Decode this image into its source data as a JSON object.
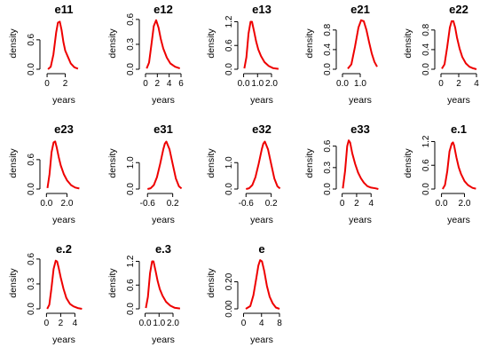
{
  "chart_data": [
    {
      "type": "line",
      "title": "e11",
      "xlabel": "years",
      "ylabel": "density",
      "xticks": [
        "0",
        "2"
      ],
      "xtick_values": [
        0,
        2
      ],
      "yticks": [
        "0.0",
        "0.6"
      ],
      "ytick_values": [
        0,
        0.6
      ],
      "xlim": [
        -0.3,
        4.0
      ],
      "ylim": [
        0,
        1.05
      ],
      "x": [
        0.1,
        0.4,
        0.7,
        1.0,
        1.2,
        1.4,
        1.6,
        1.8,
        2.0,
        2.3,
        2.6,
        3.0,
        3.4
      ],
      "series": [
        {
          "values": [
            0.0,
            0.05,
            0.3,
            0.75,
            0.95,
            0.97,
            0.8,
            0.55,
            0.38,
            0.25,
            0.12,
            0.04,
            0.01
          ]
        }
      ]
    },
    {
      "type": "line",
      "title": "e12",
      "xlabel": "years",
      "ylabel": "density",
      "xticks": [
        "0",
        "2",
        "4",
        "6"
      ],
      "xtick_values": [
        0,
        2,
        4,
        6
      ],
      "yticks": [
        "0.0",
        "0.3",
        "0.6"
      ],
      "ytick_values": [
        0,
        0.3,
        0.6
      ],
      "xlim": [
        -0.3,
        6.3
      ],
      "ylim": [
        0,
        0.62
      ],
      "x": [
        0.2,
        0.6,
        1.0,
        1.4,
        1.8,
        2.2,
        2.6,
        3.0,
        3.6,
        4.2,
        5.0,
        5.8
      ],
      "series": [
        {
          "values": [
            0.01,
            0.08,
            0.3,
            0.52,
            0.59,
            0.5,
            0.36,
            0.25,
            0.14,
            0.07,
            0.03,
            0.01
          ]
        }
      ]
    },
    {
      "type": "line",
      "title": "e13",
      "xlabel": "years",
      "ylabel": "density",
      "xticks": [
        "0.0",
        "1.0",
        "2.0"
      ],
      "xtick_values": [
        0,
        1,
        2
      ],
      "yticks": [
        "0.0",
        "0.6",
        "1.2"
      ],
      "ytick_values": [
        0,
        0.6,
        1.2
      ],
      "xlim": [
        -0.1,
        2.7
      ],
      "ylim": [
        0,
        1.3
      ],
      "x": [
        0.05,
        0.2,
        0.35,
        0.5,
        0.6,
        0.75,
        0.9,
        1.05,
        1.25,
        1.5,
        1.8,
        2.1,
        2.5
      ],
      "series": [
        {
          "values": [
            0.02,
            0.3,
            0.9,
            1.2,
            1.2,
            0.95,
            0.7,
            0.5,
            0.33,
            0.18,
            0.08,
            0.03,
            0.01
          ]
        }
      ]
    },
    {
      "type": "line",
      "title": "e21",
      "xlabel": "years",
      "ylabel": "density",
      "xticks": [
        "0.0",
        "1.0"
      ],
      "xtick_values": [
        0,
        1
      ],
      "yticks": [
        "0.0",
        "0.4",
        "0.8"
      ],
      "ytick_values": [
        0,
        0.4,
        0.8
      ],
      "xlim": [
        -0.1,
        2.1
      ],
      "ylim": [
        0,
        1.05
      ],
      "x": [
        0.3,
        0.5,
        0.7,
        0.9,
        1.05,
        1.2,
        1.35,
        1.5,
        1.65,
        1.8,
        1.95
      ],
      "series": [
        {
          "values": [
            0.01,
            0.1,
            0.45,
            0.85,
            1.0,
            0.98,
            0.8,
            0.55,
            0.32,
            0.15,
            0.05
          ]
        }
      ]
    },
    {
      "type": "line",
      "title": "e22",
      "xlabel": "years",
      "ylabel": "density",
      "xticks": [
        "0",
        "2",
        "4"
      ],
      "xtick_values": [
        0,
        2,
        4
      ],
      "yticks": [
        "0.0",
        "0.4",
        "0.8"
      ],
      "ytick_values": [
        0,
        0.4,
        0.8
      ],
      "xlim": [
        -0.2,
        4.2
      ],
      "ylim": [
        0,
        1.05
      ],
      "x": [
        0.1,
        0.4,
        0.7,
        1.0,
        1.2,
        1.4,
        1.6,
        1.8,
        2.1,
        2.4,
        2.8,
        3.2,
        3.6,
        4.0
      ],
      "series": [
        {
          "values": [
            0.01,
            0.1,
            0.45,
            0.85,
            0.98,
            0.98,
            0.85,
            0.65,
            0.42,
            0.25,
            0.12,
            0.05,
            0.02,
            0.0
          ]
        }
      ]
    },
    {
      "type": "line",
      "title": "e23",
      "xlabel": "years",
      "ylabel": "density",
      "xticks": [
        "0.0",
        "2.0"
      ],
      "xtick_values": [
        0,
        2
      ],
      "yticks": [
        "0.0",
        "0.6"
      ],
      "ytick_values": [
        0,
        0.6
      ],
      "xlim": [
        -0.2,
        3.6
      ],
      "ylim": [
        0,
        1.05
      ],
      "x": [
        0.1,
        0.3,
        0.5,
        0.7,
        0.85,
        1.0,
        1.2,
        1.4,
        1.7,
        2.0,
        2.4,
        2.8,
        3.2
      ],
      "series": [
        {
          "values": [
            0.02,
            0.3,
            0.75,
            0.95,
            0.97,
            0.85,
            0.65,
            0.48,
            0.3,
            0.18,
            0.08,
            0.03,
            0.01
          ]
        }
      ]
    },
    {
      "type": "line",
      "title": "e31",
      "xlabel": "years",
      "ylabel": "density",
      "xticks": [
        "-0.6",
        "0.2"
      ],
      "xtick_values": [
        -0.6,
        0.2
      ],
      "yticks": [
        "0.0",
        "1.0"
      ],
      "ytick_values": [
        0,
        1
      ],
      "xlim": [
        -0.72,
        0.52
      ],
      "ylim": [
        0,
        1.95
      ],
      "x": [
        -0.6,
        -0.5,
        -0.4,
        -0.3,
        -0.2,
        -0.1,
        -0.05,
        0.0,
        0.1,
        0.2,
        0.3,
        0.4,
        0.48
      ],
      "series": [
        {
          "values": [
            0.0,
            0.03,
            0.15,
            0.45,
            0.95,
            1.5,
            1.72,
            1.8,
            1.5,
            0.95,
            0.4,
            0.1,
            0.02
          ]
        }
      ]
    },
    {
      "type": "line",
      "title": "e32",
      "xlabel": "years",
      "ylabel": "density",
      "xticks": [
        "-0.6",
        "0.2"
      ],
      "xtick_values": [
        -0.6,
        0.2
      ],
      "yticks": [
        "0.0",
        "1.0"
      ],
      "ytick_values": [
        0,
        1
      ],
      "xlim": [
        -0.72,
        0.52
      ],
      "ylim": [
        0,
        1.95
      ],
      "x": [
        -0.6,
        -0.5,
        -0.4,
        -0.3,
        -0.2,
        -0.1,
        -0.05,
        0.0,
        0.1,
        0.2,
        0.3,
        0.4,
        0.48
      ],
      "series": [
        {
          "values": [
            0.0,
            0.03,
            0.15,
            0.45,
            0.95,
            1.5,
            1.72,
            1.8,
            1.5,
            0.95,
            0.4,
            0.1,
            0.02
          ]
        }
      ]
    },
    {
      "type": "line",
      "title": "e33",
      "xlabel": "years",
      "ylabel": "density",
      "xticks": [
        "0",
        "2",
        "4"
      ],
      "xtick_values": [
        0,
        2,
        4
      ],
      "yticks": [
        "0.0",
        "0.3",
        "0.6"
      ],
      "ytick_values": [
        0,
        0.3,
        0.6
      ],
      "xlim": [
        -0.2,
        5.2
      ],
      "ylim": [
        0,
        0.72
      ],
      "x": [
        0.1,
        0.4,
        0.7,
        0.9,
        1.1,
        1.4,
        1.8,
        2.2,
        2.6,
        3.0,
        3.5,
        4.0,
        4.6,
        5.0
      ],
      "series": [
        {
          "values": [
            0.01,
            0.25,
            0.6,
            0.68,
            0.65,
            0.5,
            0.35,
            0.23,
            0.15,
            0.09,
            0.04,
            0.02,
            0.01,
            0.0
          ]
        }
      ]
    },
    {
      "type": "line",
      "title": "e.1",
      "xlabel": "years",
      "ylabel": "density",
      "xticks": [
        "0.0",
        "2.0"
      ],
      "xtick_values": [
        0,
        2
      ],
      "yticks": [
        "0.0",
        "0.6",
        "1.2"
      ],
      "ytick_values": [
        0,
        0.6,
        1.2
      ],
      "xlim": [
        -0.2,
        3.2
      ],
      "ylim": [
        0,
        1.3
      ],
      "x": [
        0.1,
        0.3,
        0.5,
        0.7,
        0.9,
        1.0,
        1.1,
        1.3,
        1.5,
        1.7,
        2.0,
        2.3,
        2.7,
        3.0
      ],
      "series": [
        {
          "values": [
            0.0,
            0.1,
            0.45,
            0.95,
            1.15,
            1.18,
            1.1,
            0.8,
            0.55,
            0.38,
            0.2,
            0.1,
            0.03,
            0.01
          ]
        }
      ]
    },
    {
      "type": "line",
      "title": "e.2",
      "xlabel": "years",
      "ylabel": "density",
      "xticks": [
        "0",
        "2",
        "4"
      ],
      "xtick_values": [
        0,
        2,
        4
      ],
      "yticks": [
        "0.0",
        "0.3",
        "0.6"
      ],
      "ytick_values": [
        0,
        0.3,
        0.6
      ],
      "xlim": [
        -0.3,
        5.2
      ],
      "ylim": [
        0,
        0.62
      ],
      "x": [
        0.1,
        0.4,
        0.7,
        1.0,
        1.3,
        1.5,
        1.7,
        2.0,
        2.4,
        2.8,
        3.3,
        3.8,
        4.4,
        5.0
      ],
      "series": [
        {
          "values": [
            0.0,
            0.05,
            0.25,
            0.48,
            0.58,
            0.57,
            0.5,
            0.38,
            0.24,
            0.13,
            0.06,
            0.03,
            0.01,
            0.0
          ]
        }
      ]
    },
    {
      "type": "line",
      "title": "e.3",
      "xlabel": "years",
      "ylabel": "density",
      "xticks": [
        "0.0",
        "1.0",
        "2.0"
      ],
      "xtick_values": [
        0,
        1,
        2
      ],
      "yticks": [
        "0.0",
        "0.6",
        "1.2"
      ],
      "ytick_values": [
        0,
        0.6,
        1.2
      ],
      "xlim": [
        -0.1,
        2.7
      ],
      "ylim": [
        0,
        1.3
      ],
      "x": [
        0.05,
        0.2,
        0.35,
        0.5,
        0.6,
        0.75,
        0.9,
        1.05,
        1.25,
        1.5,
        1.8,
        2.1,
        2.5
      ],
      "series": [
        {
          "values": [
            0.02,
            0.3,
            0.9,
            1.2,
            1.2,
            0.95,
            0.7,
            0.5,
            0.33,
            0.18,
            0.08,
            0.03,
            0.01
          ]
        }
      ]
    },
    {
      "type": "line",
      "title": "e",
      "xlabel": "years",
      "ylabel": "density",
      "xticks": [
        "0",
        "4",
        "8"
      ],
      "xtick_values": [
        0,
        4,
        8
      ],
      "yticks": [
        "0.00",
        "0.20"
      ],
      "ytick_values": [
        0,
        0.2
      ],
      "xlim": [
        -0.3,
        8.4
      ],
      "ylim": [
        0,
        0.38
      ],
      "x": [
        0.5,
        1.5,
        2.2,
        2.8,
        3.3,
        3.7,
        4.1,
        4.6,
        5.2,
        5.8,
        6.5,
        7.2,
        8.0
      ],
      "series": [
        {
          "values": [
            0.0,
            0.02,
            0.1,
            0.22,
            0.32,
            0.36,
            0.35,
            0.28,
            0.17,
            0.09,
            0.04,
            0.01,
            0.0
          ]
        }
      ]
    }
  ]
}
